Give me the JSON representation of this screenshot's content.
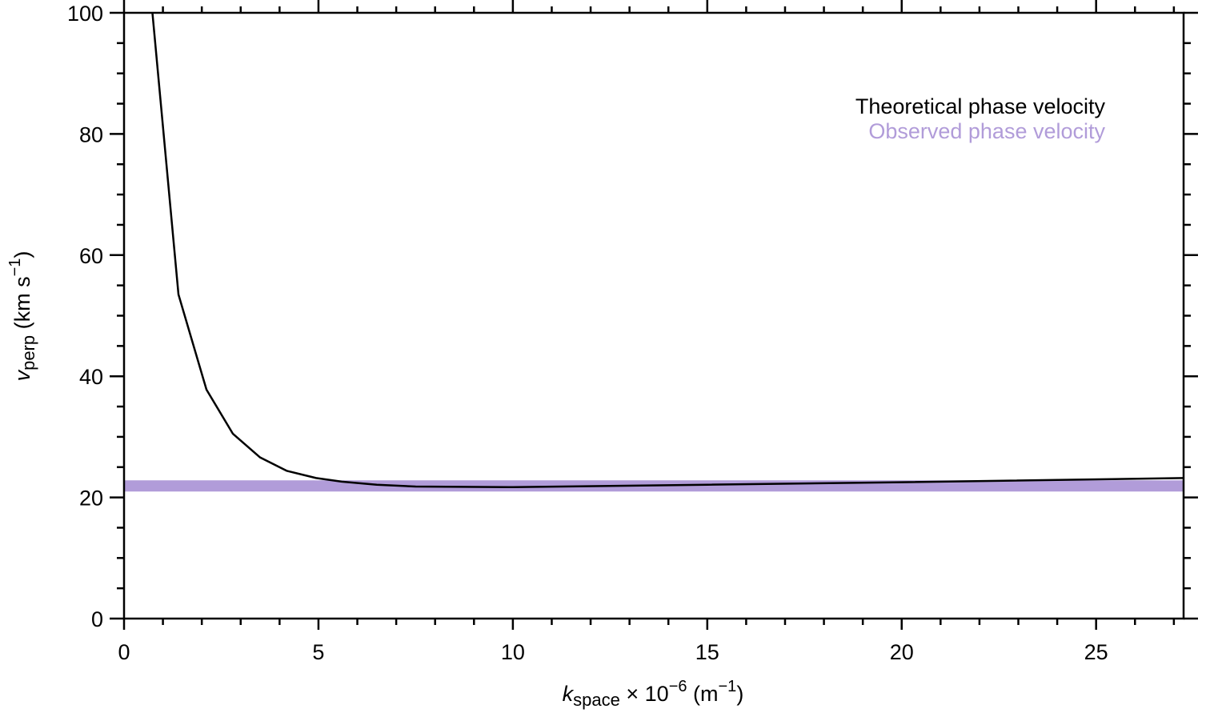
{
  "chart_data": {
    "type": "line",
    "xlabel": [
      "k",
      "space",
      " × 10",
      "−6",
      " (m",
      "−1",
      ")"
    ],
    "ylabel": [
      "v",
      "perp",
      " (km s",
      "−1",
      ")"
    ],
    "xlim": [
      0,
      27.25
    ],
    "ylim": [
      0,
      100
    ],
    "xticks": [
      0,
      5,
      10,
      15,
      20,
      25
    ],
    "yticks": [
      0,
      20,
      40,
      60,
      80,
      100
    ],
    "xminor_ticks": [
      1,
      2,
      3,
      4,
      6,
      7,
      8,
      9,
      11,
      12,
      13,
      14,
      16,
      17,
      18,
      19,
      21,
      22,
      23,
      24,
      26,
      27
    ],
    "yminor_ticks": [
      5,
      10,
      15,
      25,
      30,
      35,
      45,
      50,
      55,
      65,
      70,
      75,
      85,
      90,
      95
    ],
    "legend": "upper right",
    "series": [
      {
        "name": "Observed phase velocity",
        "color": "#b19cd9",
        "linewidth": 14,
        "x": [
          0,
          27.25
        ],
        "values": [
          21.9,
          21.9
        ]
      },
      {
        "name": "Theoretical phase velocity",
        "color": "#000000",
        "linewidth": 2.5,
        "x": [
          0.73,
          1.4,
          2.12,
          2.8,
          3.5,
          4.18,
          4.94,
          5.6,
          6.5,
          7.5,
          10,
          15,
          20,
          27.25
        ],
        "values": [
          100,
          53.5,
          37.8,
          30.5,
          26.6,
          24.4,
          23.2,
          22.6,
          22.1,
          21.8,
          21.7,
          22.1,
          22.5,
          23.2
        ]
      }
    ]
  }
}
